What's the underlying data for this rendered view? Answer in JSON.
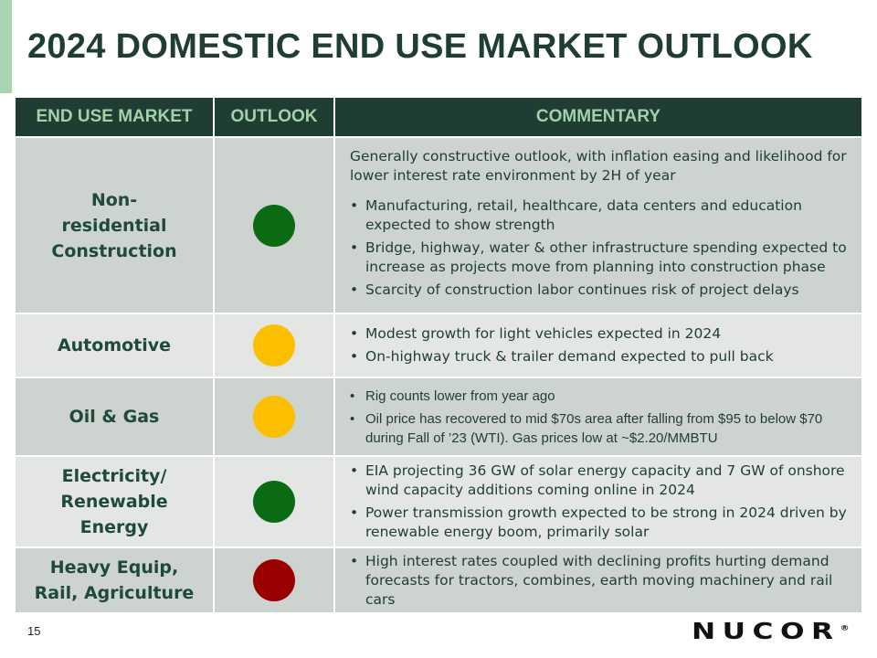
{
  "title": "2024 DOMESTIC END USE MARKET OUTLOOK",
  "headers": {
    "market": "END USE MARKET",
    "outlook": "OUTLOOK",
    "commentary": "COMMENTARY"
  },
  "colors": {
    "green": "#0b6b14",
    "yellow": "#fcbf00",
    "red": "#9a0000"
  },
  "rows": [
    {
      "market": "Non-residential Construction",
      "outlook": "green",
      "intro": "Generally constructive outlook, with inflation easing and likelihood for lower interest rate environment by 2H of year",
      "bullets": [
        "Manufacturing, retail, healthcare, data centers and education expected to show strength",
        "Bridge, highway, water & other infrastructure spending expected to increase as projects move from planning into construction phase",
        "Scarcity of construction labor continues risk of project delays"
      ]
    },
    {
      "market": "Automotive",
      "outlook": "yellow",
      "bullets": [
        "Modest growth for light vehicles expected in 2024",
        "On-highway truck & trailer demand expected to pull back"
      ]
    },
    {
      "market": "Oil & Gas",
      "outlook": "yellow",
      "bullets": [
        "Rig counts lower from year ago",
        "Oil price has recovered to mid $70s area after falling from $95 to below $70 during Fall of ’23 (WTI). Gas prices low at ~$2.20/MMBTU"
      ]
    },
    {
      "market": "Electricity/ Renewable Energy",
      "outlook": "green",
      "bullets": [
        "EIA projecting 36 GW of solar energy capacity and 7 GW of onshore wind capacity additions coming online in 2024",
        "Power transmission growth expected to be strong in 2024 driven by renewable energy boom, primarily solar"
      ]
    },
    {
      "market": "Heavy Equip, Rail, Agriculture",
      "outlook": "red",
      "bullets": [
        "High interest rates coupled with declining profits hurting demand forecasts for tractors, combines, earth moving machinery and rail cars"
      ]
    }
  ],
  "page_number": "15",
  "logo": "NUCOR"
}
